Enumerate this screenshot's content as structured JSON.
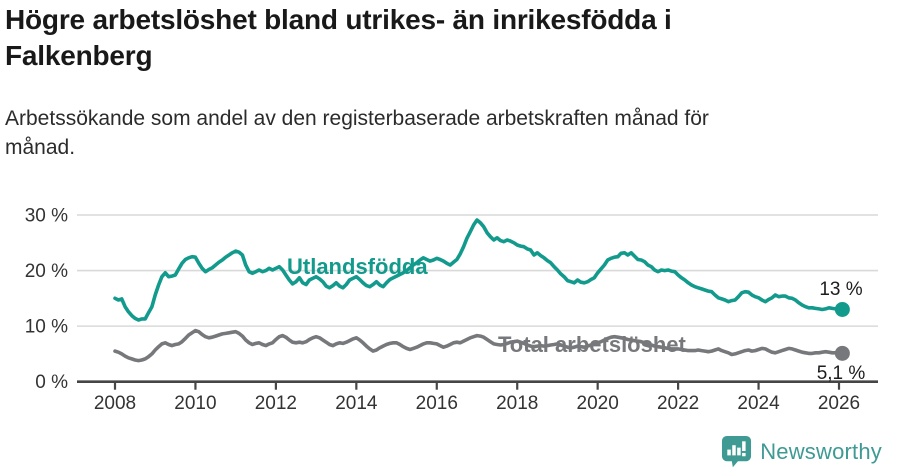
{
  "header": {
    "title": "Högre arbetslöshet bland utrikes- än inrikesfödda i Falkenberg",
    "subtitle": "Arbetssökande som andel av den registerbaserade arbetskraften månad för månad."
  },
  "colors": {
    "accent_teal": "#129a8d",
    "series_gray": "#77787b",
    "grid": "#d9d9d9",
    "axis": "#454545",
    "tick_text": "#333333",
    "value_text": "#1d1d1d",
    "logo_teal": "#3e9a93"
  },
  "chart_data": {
    "type": "line",
    "title": "",
    "xlabel": "",
    "ylabel": "",
    "x_start": "2008-01",
    "x_end": "2026-02",
    "x_interval": "monthly",
    "x_tick_years": [
      2008,
      2010,
      2012,
      2014,
      2016,
      2018,
      2020,
      2022,
      2024,
      2026
    ],
    "x_tick_labels": [
      "2008",
      "2010",
      "2012",
      "2014",
      "2016",
      "2018",
      "2020",
      "2022",
      "2024",
      "2026"
    ],
    "y_ticks": [
      0,
      10,
      20,
      30
    ],
    "y_tick_labels": [
      "0 %",
      "10 %",
      "20 %",
      "30 %"
    ],
    "ylim": [
      0,
      31
    ],
    "grid": "horizontal",
    "legend_position": "inline-labels",
    "series": [
      {
        "name": "Utlandsfödda",
        "color": "#129a8d",
        "end_label": "13 %",
        "end_value": 13,
        "values": [
          15.0,
          14.7,
          14.9,
          13.5,
          12.6,
          11.9,
          11.4,
          11.1,
          11.3,
          11.3,
          12.4,
          13.5,
          15.6,
          17.4,
          18.9,
          19.6,
          18.9,
          19.0,
          19.2,
          20.3,
          21.3,
          22.0,
          22.3,
          22.5,
          22.4,
          21.3,
          20.4,
          19.8,
          20.2,
          20.5,
          21.0,
          21.5,
          21.9,
          22.4,
          22.8,
          23.2,
          23.5,
          23.3,
          22.8,
          21.0,
          19.8,
          19.5,
          19.8,
          20.1,
          19.8,
          20.0,
          20.4,
          20.1,
          20.4,
          20.7,
          20.1,
          19.2,
          18.3,
          17.6,
          18.0,
          18.7,
          17.8,
          17.5,
          18.3,
          18.6,
          18.9,
          18.5,
          18.0,
          17.2,
          16.9,
          17.3,
          17.8,
          17.2,
          16.9,
          17.5,
          18.3,
          18.6,
          18.9,
          18.4,
          17.8,
          17.3,
          17.1,
          17.5,
          18.0,
          17.4,
          17.1,
          17.8,
          18.4,
          18.7,
          19.0,
          19.3,
          19.6,
          20.0,
          20.5,
          21.0,
          21.4,
          21.9,
          22.3,
          22.0,
          21.7,
          21.9,
          22.2,
          22.0,
          21.7,
          21.3,
          21.0,
          21.5,
          22.0,
          23.0,
          24.3,
          25.8,
          27.0,
          28.2,
          29.1,
          28.6,
          27.9,
          26.8,
          26.1,
          25.5,
          25.9,
          25.4,
          25.2,
          25.5,
          25.3,
          25.0,
          24.6,
          24.4,
          24.3,
          23.9,
          23.7,
          22.8,
          23.2,
          22.7,
          22.3,
          21.8,
          21.4,
          20.7,
          20.1,
          19.4,
          18.9,
          18.2,
          18.0,
          17.8,
          18.3,
          17.9,
          17.8,
          18.0,
          18.4,
          18.7,
          19.6,
          20.3,
          21.0,
          21.9,
          22.2,
          22.4,
          22.5,
          23.1,
          23.2,
          22.8,
          23.2,
          22.6,
          22.0,
          21.9,
          21.6,
          21.0,
          20.7,
          20.1,
          19.8,
          20.1,
          20.0,
          20.1,
          19.9,
          19.8,
          19.2,
          18.7,
          18.3,
          17.8,
          17.4,
          17.1,
          16.9,
          16.7,
          16.5,
          16.3,
          16.2,
          15.6,
          15.1,
          14.9,
          14.7,
          14.4,
          14.6,
          14.7,
          15.3,
          16.0,
          16.2,
          16.1,
          15.6,
          15.3,
          15.1,
          14.7,
          14.4,
          14.8,
          15.1,
          15.6,
          15.3,
          15.4,
          15.4,
          15.1,
          15.0,
          14.7,
          14.2,
          13.8,
          13.5,
          13.3,
          13.3,
          13.2,
          13.1,
          13.0,
          13.1,
          13.3,
          13.2,
          13.1,
          13.1,
          13.0
        ]
      },
      {
        "name": "Total arbetslöshet",
        "color": "#77787b",
        "end_label": "5,1 %",
        "end_value": 5.1,
        "values": [
          5.5,
          5.3,
          5.0,
          4.6,
          4.3,
          4.1,
          3.9,
          3.8,
          3.9,
          4.1,
          4.5,
          5.0,
          5.7,
          6.3,
          6.8,
          7.0,
          6.7,
          6.5,
          6.7,
          6.8,
          7.2,
          7.8,
          8.4,
          8.8,
          9.2,
          9.0,
          8.5,
          8.1,
          7.9,
          8.0,
          8.2,
          8.4,
          8.6,
          8.7,
          8.8,
          8.9,
          9.0,
          8.7,
          8.2,
          7.5,
          7.0,
          6.7,
          6.9,
          7.0,
          6.7,
          6.5,
          6.8,
          7.0,
          7.6,
          8.1,
          8.3,
          8.0,
          7.5,
          7.1,
          7.0,
          7.1,
          7.0,
          7.2,
          7.6,
          7.9,
          8.1,
          7.9,
          7.5,
          7.1,
          6.7,
          6.5,
          6.8,
          7.0,
          6.9,
          7.1,
          7.4,
          7.7,
          7.9,
          7.5,
          7.0,
          6.4,
          5.9,
          5.5,
          5.7,
          6.1,
          6.4,
          6.7,
          6.9,
          7.0,
          7.0,
          6.7,
          6.3,
          6.0,
          5.8,
          6.0,
          6.2,
          6.5,
          6.8,
          7.0,
          7.0,
          6.9,
          6.8,
          6.5,
          6.2,
          6.4,
          6.7,
          7.0,
          7.1,
          7.0,
          7.3,
          7.6,
          7.9,
          8.1,
          8.3,
          8.2,
          8.0,
          7.6,
          7.2,
          6.8,
          6.7,
          6.6,
          6.7,
          6.9,
          7.1,
          7.2,
          7.3,
          7.1,
          6.9,
          6.6,
          6.4,
          6.3,
          6.4,
          6.5,
          6.4,
          6.5,
          6.6,
          6.7,
          6.8,
          6.6,
          6.4,
          6.2,
          6.1,
          6.2,
          6.4,
          6.3,
          6.2,
          6.4,
          6.6,
          6.8,
          7.0,
          7.2,
          7.5,
          7.8,
          8.0,
          8.1,
          8.0,
          7.9,
          7.8,
          7.6,
          7.5,
          7.4,
          7.3,
          7.2,
          7.0,
          6.8,
          6.6,
          6.4,
          6.3,
          6.2,
          6.1,
          6.0,
          5.9,
          5.9,
          5.9,
          5.8,
          5.7,
          5.6,
          5.6,
          5.6,
          5.7,
          5.6,
          5.5,
          5.4,
          5.5,
          5.7,
          5.9,
          5.6,
          5.4,
          5.2,
          4.9,
          5.0,
          5.2,
          5.4,
          5.6,
          5.7,
          5.5,
          5.6,
          5.8,
          6.0,
          5.9,
          5.6,
          5.3,
          5.2,
          5.4,
          5.6,
          5.8,
          6.0,
          5.9,
          5.7,
          5.5,
          5.3,
          5.2,
          5.1,
          5.1,
          5.2,
          5.2,
          5.3,
          5.4,
          5.3,
          5.2,
          5.2,
          5.2,
          5.1
        ]
      }
    ]
  },
  "footer": {
    "brand": "Newsworthy"
  }
}
